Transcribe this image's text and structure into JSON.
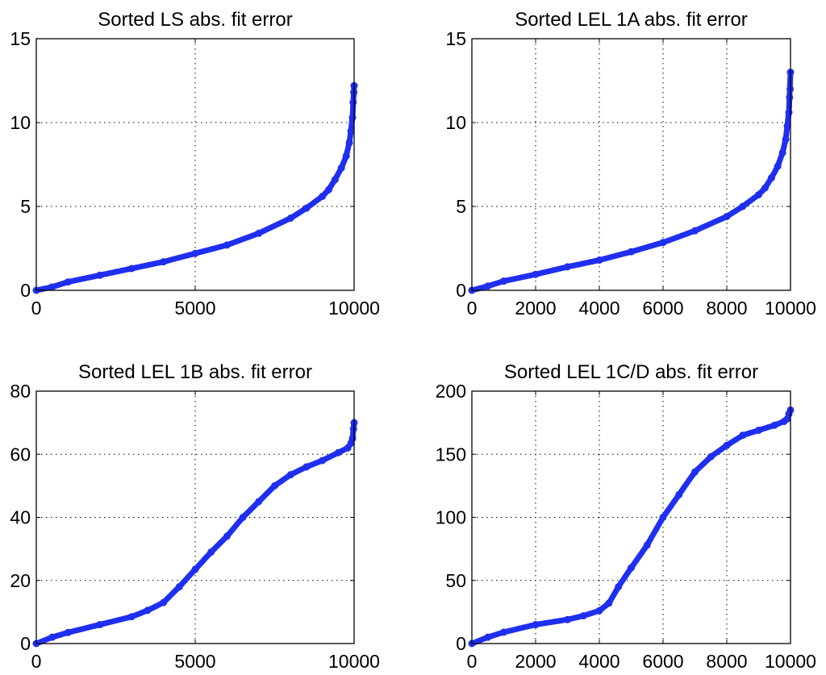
{
  "chart_data": [
    {
      "type": "scatter",
      "title": "Sorted LS abs. fit error",
      "xlabel": "",
      "ylabel": "",
      "xlim": [
        0,
        10000
      ],
      "ylim": [
        0,
        15
      ],
      "xticks": [
        0,
        5000,
        10000
      ],
      "xtick_labels": [
        "0",
        "5000",
        "10000"
      ],
      "yticks": [
        0,
        5,
        10,
        15
      ],
      "ytick_labels": [
        "0",
        "5",
        "10",
        "15"
      ],
      "grid": true,
      "series": [
        {
          "color": "#1f2ff0",
          "x": [
            0,
            500,
            1000,
            2000,
            3000,
            4000,
            5000,
            6000,
            7000,
            8000,
            8500,
            9000,
            9200,
            9400,
            9600,
            9750,
            9850,
            9900,
            9950,
            9970,
            9990,
            10000
          ],
          "y": [
            0.0,
            0.2,
            0.5,
            0.9,
            1.3,
            1.7,
            2.2,
            2.7,
            3.4,
            4.3,
            4.9,
            5.6,
            6.0,
            6.6,
            7.3,
            8.0,
            8.8,
            9.5,
            10.3,
            11.2,
            11.8,
            12.2
          ]
        }
      ]
    },
    {
      "type": "scatter",
      "title": "Sorted LEL 1A abs. fit error",
      "xlabel": "",
      "ylabel": "",
      "xlim": [
        0,
        10000
      ],
      "ylim": [
        0,
        15
      ],
      "xticks": [
        0,
        2000,
        4000,
        6000,
        8000,
        10000
      ],
      "xtick_labels": [
        "0",
        "2000",
        "4000",
        "6000",
        "8000",
        "10000"
      ],
      "yticks": [
        0,
        5,
        10,
        15
      ],
      "ytick_labels": [
        "0",
        "5",
        "10",
        "15"
      ],
      "grid": true,
      "series": [
        {
          "color": "#1f2ff0",
          "x": [
            0,
            500,
            1000,
            2000,
            3000,
            4000,
            5000,
            6000,
            7000,
            8000,
            8500,
            9000,
            9200,
            9400,
            9600,
            9750,
            9850,
            9900,
            9950,
            9970,
            9990,
            10000
          ],
          "y": [
            0.0,
            0.25,
            0.55,
            0.95,
            1.4,
            1.8,
            2.3,
            2.85,
            3.55,
            4.4,
            5.0,
            5.7,
            6.1,
            6.7,
            7.4,
            8.2,
            9.0,
            9.8,
            10.6,
            11.5,
            12.0,
            13.0
          ]
        }
      ]
    },
    {
      "type": "scatter",
      "title": "Sorted LEL 1B abs. fit error",
      "xlabel": "",
      "ylabel": "",
      "xlim": [
        0,
        10000
      ],
      "ylim": [
        0,
        80
      ],
      "xticks": [
        0,
        5000,
        10000
      ],
      "xtick_labels": [
        "0",
        "5000",
        "10000"
      ],
      "yticks": [
        0,
        20,
        40,
        60,
        80
      ],
      "ytick_labels": [
        "0",
        "20",
        "40",
        "60",
        "80"
      ],
      "grid": true,
      "series": [
        {
          "color": "#1f2ff0",
          "x": [
            0,
            500,
            1000,
            2000,
            3000,
            3500,
            4000,
            4500,
            5000,
            5500,
            6000,
            6500,
            7000,
            7500,
            8000,
            8500,
            9000,
            9500,
            9800,
            9900,
            9950,
            9980,
            10000
          ],
          "y": [
            0,
            2,
            3.5,
            6,
            8.5,
            10.5,
            13,
            18,
            23.5,
            29,
            34,
            40,
            45,
            50,
            53.5,
            56,
            58,
            60.5,
            62,
            63.5,
            65,
            68,
            70
          ]
        }
      ]
    },
    {
      "type": "scatter",
      "title": "Sorted LEL 1C/D abs. fit error",
      "xlabel": "",
      "ylabel": "",
      "xlim": [
        0,
        10000
      ],
      "ylim": [
        0,
        200
      ],
      "xticks": [
        0,
        2000,
        4000,
        6000,
        8000,
        10000
      ],
      "xtick_labels": [
        "0",
        "2000",
        "4000",
        "6000",
        "8000",
        "10000"
      ],
      "yticks": [
        0,
        50,
        100,
        150,
        200
      ],
      "ytick_labels": [
        "0",
        "50",
        "100",
        "150",
        "200"
      ],
      "grid": true,
      "series": [
        {
          "color": "#1f2ff0",
          "x": [
            0,
            500,
            1000,
            2000,
            3000,
            3500,
            4000,
            4300,
            4600,
            5000,
            5500,
            6000,
            6500,
            7000,
            7500,
            8000,
            8500,
            9000,
            9500,
            9800,
            9900,
            9950,
            10000
          ],
          "y": [
            0,
            5,
            9,
            15,
            19,
            22,
            26,
            32,
            45,
            60,
            78,
            100,
            118,
            136,
            148,
            157,
            165,
            169,
            173,
            176,
            178,
            182,
            185
          ]
        }
      ]
    }
  ]
}
